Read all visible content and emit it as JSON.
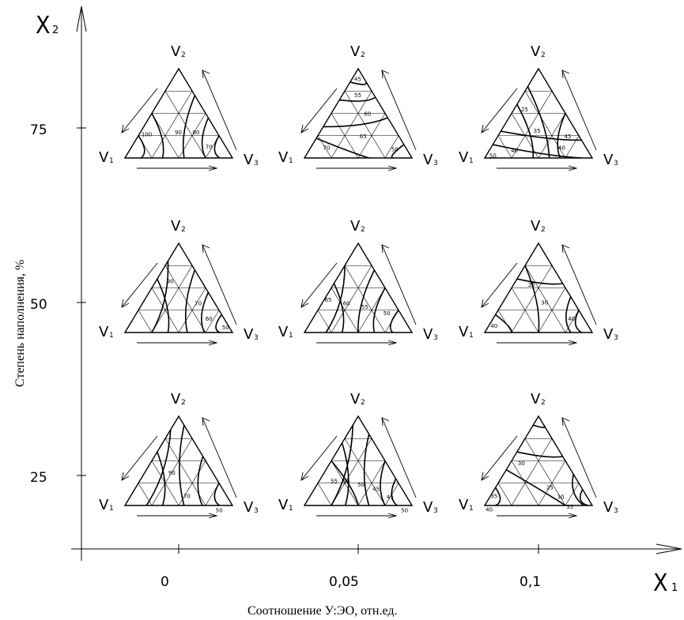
{
  "axes": {
    "x_letter": "X",
    "x_sub": "1",
    "y_letter": "X",
    "y_sub": "2",
    "x_title": "Соотношение У:ЭО, отн.ед.",
    "y_title": "Степень наполнения, %",
    "x_ticks": [
      "0",
      "0,05",
      "0,1"
    ],
    "y_ticks": [
      "75",
      "50",
      "25"
    ]
  },
  "vertex_labels": {
    "top": "V",
    "top_sub": "2",
    "left": "V",
    "left_sub": "1",
    "right": "V",
    "right_sub": "3"
  },
  "diagrams": [
    {
      "row": 0,
      "col": 0,
      "contour_labels": [
        "100",
        "90",
        "80",
        "70"
      ]
    },
    {
      "row": 0,
      "col": 1,
      "contour_labels": [
        "45",
        "55",
        "60",
        "65",
        "70",
        "50"
      ]
    },
    {
      "row": 0,
      "col": 2,
      "contour_labels": [
        "25",
        "35",
        "45",
        "40",
        "40",
        "50"
      ]
    },
    {
      "row": 1,
      "col": 0,
      "contour_labels": [
        "90",
        "70",
        "60",
        "50"
      ]
    },
    {
      "row": 1,
      "col": 1,
      "contour_labels": [
        "65",
        "60",
        "55",
        "50"
      ]
    },
    {
      "row": 1,
      "col": 2,
      "contour_labels": [
        "25",
        "30",
        "40",
        "40"
      ]
    },
    {
      "row": 2,
      "col": 0,
      "contour_labels": [
        "90",
        "70",
        "50"
      ]
    },
    {
      "row": 2,
      "col": 1,
      "contour_labels": [
        "55",
        "55",
        "50",
        "45",
        "45",
        "50"
      ]
    },
    {
      "row": 2,
      "col": 2,
      "contour_labels": [
        "30",
        "25",
        "30",
        "35",
        "35",
        "40"
      ]
    }
  ]
}
